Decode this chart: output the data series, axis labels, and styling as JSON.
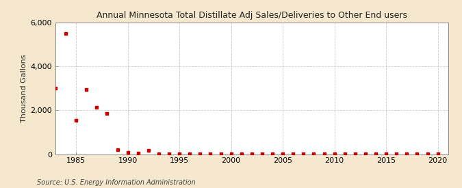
{
  "title": "Annual Minnesota Total Distillate Adj Sales/Deliveries to Other End users",
  "ylabel": "Thousand Gallons",
  "source": "Source: U.S. Energy Information Administration",
  "fig_bg_color": "#f5e8ce",
  "plot_bg_color": "#ffffff",
  "marker_color": "#cc0000",
  "grid_color": "#c8c8c8",
  "xlim": [
    1983,
    2021
  ],
  "ylim": [
    0,
    6000
  ],
  "yticks": [
    0,
    2000,
    4000,
    6000
  ],
  "ytick_labels": [
    "0",
    "2,000",
    "4,000",
    "6,000"
  ],
  "xticks": [
    1985,
    1990,
    1995,
    2000,
    2005,
    2010,
    2015,
    2020
  ],
  "data": [
    [
      1983,
      3000
    ],
    [
      1984,
      5500
    ],
    [
      1985,
      1550
    ],
    [
      1986,
      2950
    ],
    [
      1987,
      2150
    ],
    [
      1988,
      1850
    ],
    [
      1989,
      190
    ],
    [
      1990,
      70
    ],
    [
      1991,
      50
    ],
    [
      1992,
      180
    ],
    [
      1993,
      20
    ],
    [
      1994,
      10
    ],
    [
      1995,
      15
    ],
    [
      1996,
      10
    ],
    [
      1997,
      8
    ],
    [
      1998,
      8
    ],
    [
      1999,
      8
    ],
    [
      2000,
      10
    ],
    [
      2001,
      8
    ],
    [
      2002,
      8
    ],
    [
      2003,
      8
    ],
    [
      2004,
      8
    ],
    [
      2005,
      5
    ],
    [
      2006,
      5
    ],
    [
      2007,
      5
    ],
    [
      2008,
      10
    ],
    [
      2009,
      5
    ],
    [
      2010,
      5
    ],
    [
      2011,
      5
    ],
    [
      2012,
      5
    ],
    [
      2013,
      5
    ],
    [
      2014,
      5
    ],
    [
      2015,
      5
    ],
    [
      2016,
      5
    ],
    [
      2017,
      5
    ],
    [
      2018,
      5
    ],
    [
      2019,
      5
    ],
    [
      2020,
      5
    ]
  ]
}
